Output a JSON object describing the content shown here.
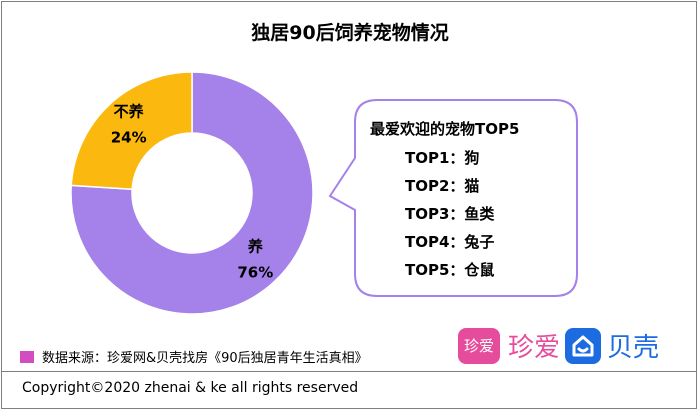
{
  "title": "独居90后饲养宠物情况",
  "chart_data": {
    "type": "pie",
    "donut": true,
    "labels": [
      "养",
      "不养"
    ],
    "values": [
      76,
      24
    ],
    "value_labels": [
      "76%",
      "24%"
    ],
    "colors": [
      "#a581ea",
      "#fbb80e"
    ]
  },
  "callout": {
    "title": "最爱欢迎的宠物TOP5",
    "items": [
      "TOP1：狗",
      "TOP2：猫",
      "TOP3：鱼类",
      "TOP4：兔子",
      "TOP5：仓鼠"
    ],
    "border_color": "#a581ea"
  },
  "source": {
    "text": "数据来源：珍爱网&贝壳找房《90后独居青年生活真相》",
    "swatch_color": "#d24dbf"
  },
  "logos": {
    "zhenai_mark": "珍爱",
    "zhenai_text": "珍爱",
    "zhenai_color": "#e64c9c",
    "beike_text": "贝壳",
    "beike_color": "#1d6be0",
    "beike_icon": "house-icon"
  },
  "copyright": "Copyright©2020 zhenai & ke all rights reserved"
}
